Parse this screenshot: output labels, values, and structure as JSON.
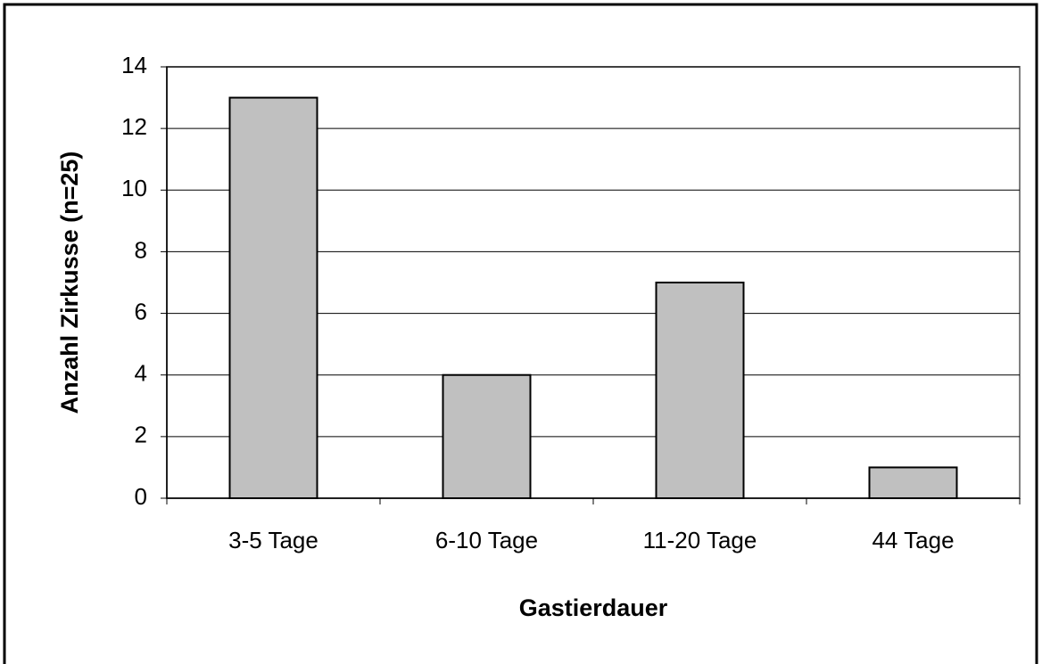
{
  "chart_data": {
    "type": "bar",
    "categories": [
      "3-5 Tage",
      "6-10 Tage",
      "11-20 Tage",
      "44 Tage"
    ],
    "values": [
      13,
      4,
      7,
      1
    ],
    "color": "#c0c0c0",
    "xlabel": "Gastierdauer",
    "ylabel": "Anzahl Zirkusse (n=25)",
    "ylim": [
      0,
      14
    ],
    "yticks": [
      0,
      2,
      4,
      6,
      8,
      10,
      12,
      14
    ],
    "grid": true
  }
}
